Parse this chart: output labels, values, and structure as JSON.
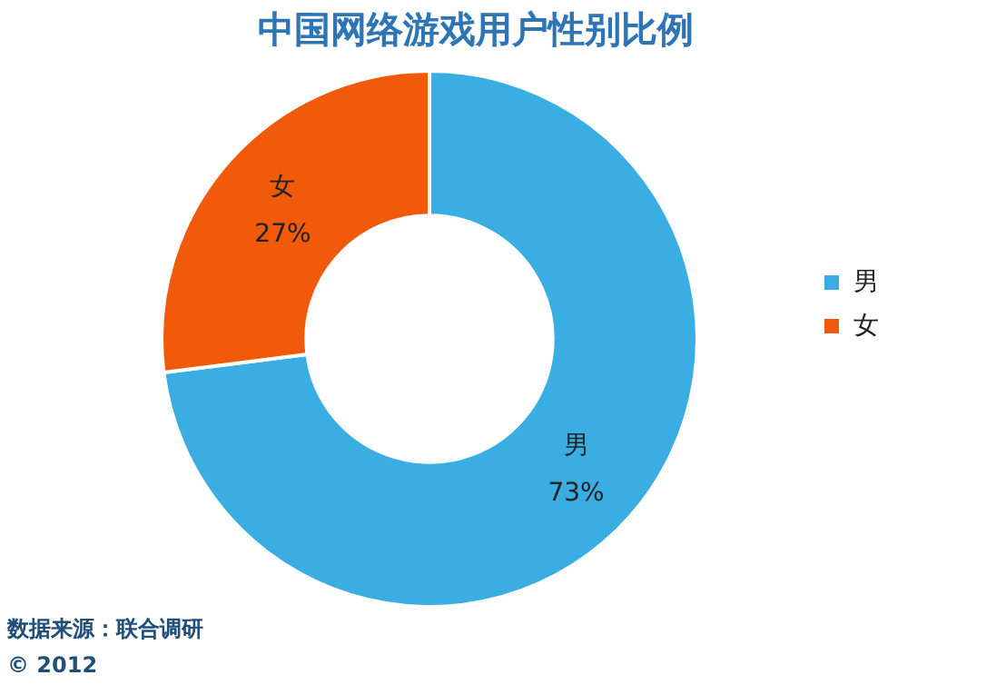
{
  "chart_data": {
    "type": "donut",
    "title": "中国网络游戏用户性别比例",
    "categories": [
      "男",
      "女"
    ],
    "values": [
      73,
      27
    ],
    "colors": [
      "#3aaee2",
      "#f05a0a"
    ],
    "value_labels": [
      "73%",
      "27%"
    ],
    "legend": "right",
    "annotations": [
      "数据来源：联合调研",
      "© 2012"
    ]
  }
}
